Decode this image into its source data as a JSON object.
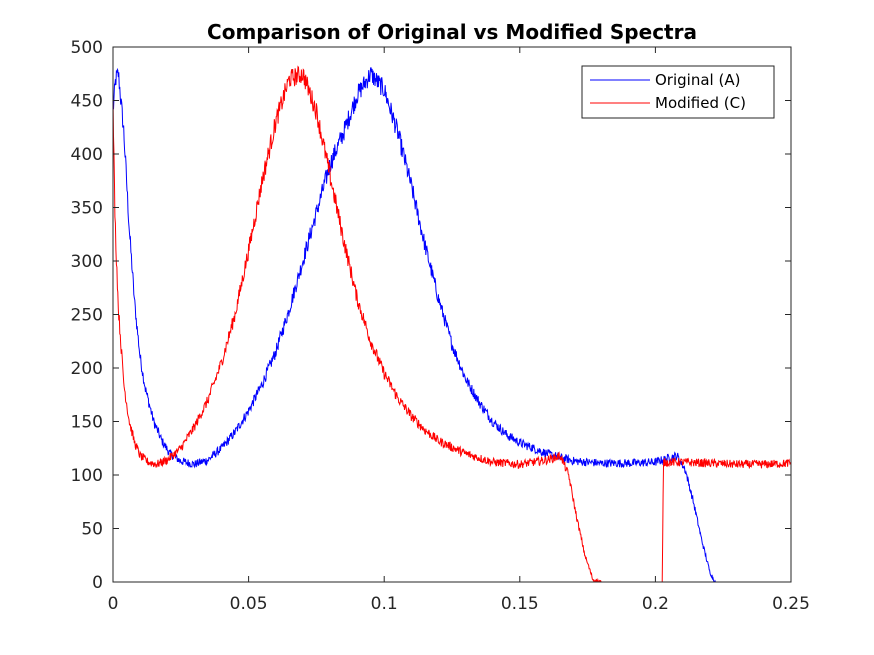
{
  "chart_data": {
    "type": "line",
    "title": "Comparison of Original vs Modified Spectra",
    "xlabel": "",
    "ylabel": "",
    "xlim": [
      0,
      0.25
    ],
    "ylim": [
      0,
      500
    ],
    "x_ticks": [
      0,
      0.05,
      0.1,
      0.15,
      0.2,
      0.25
    ],
    "x_tick_labels": [
      "0",
      "0.05",
      "0.1",
      "0.15",
      "0.2",
      "0.25"
    ],
    "y_ticks": [
      0,
      50,
      100,
      150,
      200,
      250,
      300,
      350,
      400,
      450,
      500
    ],
    "y_tick_labels": [
      "0",
      "50",
      "100",
      "150",
      "200",
      "250",
      "300",
      "350",
      "400",
      "450",
      "500"
    ],
    "grid": false,
    "legend_position": "top-right",
    "series": [
      {
        "name": "Original (A)",
        "color": "#0000ff",
        "x": [
          0,
          0.001,
          0.002,
          0.004,
          0.006,
          0.008,
          0.01,
          0.012,
          0.015,
          0.018,
          0.021,
          0.025,
          0.03,
          0.035,
          0.04,
          0.045,
          0.05,
          0.055,
          0.06,
          0.065,
          0.07,
          0.075,
          0.08,
          0.085,
          0.09,
          0.095,
          0.1,
          0.105,
          0.11,
          0.115,
          0.12,
          0.125,
          0.13,
          0.135,
          0.14,
          0.145,
          0.15,
          0.16,
          0.17,
          0.18,
          0.19,
          0.2,
          0.205,
          0.208,
          0.211,
          0.214,
          0.217,
          0.22,
          0.222,
          0.23,
          0.24,
          0.25
        ],
        "y": [
          440,
          470,
          475,
          420,
          330,
          260,
          210,
          180,
          150,
          132,
          120,
          113,
          110,
          114,
          125,
          140,
          160,
          185,
          215,
          255,
          300,
          345,
          390,
          420,
          455,
          475,
          460,
          420,
          370,
          315,
          265,
          222,
          190,
          168,
          150,
          138,
          130,
          120,
          113,
          111,
          111,
          112,
          116,
          118,
          105,
          75,
          40,
          10,
          0,
          0,
          0,
          0
        ]
      },
      {
        "name": "Modified (C)",
        "color": "#ff0000",
        "x": [
          0,
          0.0005,
          0.001,
          0.002,
          0.004,
          0.006,
          0.008,
          0.01,
          0.013,
          0.016,
          0.02,
          0.025,
          0.03,
          0.035,
          0.04,
          0.045,
          0.05,
          0.055,
          0.06,
          0.065,
          0.07,
          0.075,
          0.08,
          0.085,
          0.09,
          0.095,
          0.1,
          0.105,
          0.11,
          0.115,
          0.12,
          0.13,
          0.14,
          0.15,
          0.16,
          0.165,
          0.168,
          0.171,
          0.174,
          0.177,
          0.18,
          0.19,
          0.2,
          0.2025,
          0.203,
          0.21,
          0.22,
          0.23,
          0.24,
          0.25
        ],
        "y": [
          450,
          370,
          320,
          255,
          185,
          150,
          130,
          118,
          112,
          110,
          114,
          125,
          145,
          170,
          205,
          250,
          310,
          375,
          430,
          470,
          475,
          440,
          380,
          320,
          265,
          225,
          195,
          172,
          155,
          142,
          132,
          120,
          112,
          110,
          114,
          118,
          100,
          60,
          25,
          2,
          0,
          0,
          0,
          0,
          112,
          112,
          111,
          110,
          110,
          111
        ]
      }
    ]
  }
}
